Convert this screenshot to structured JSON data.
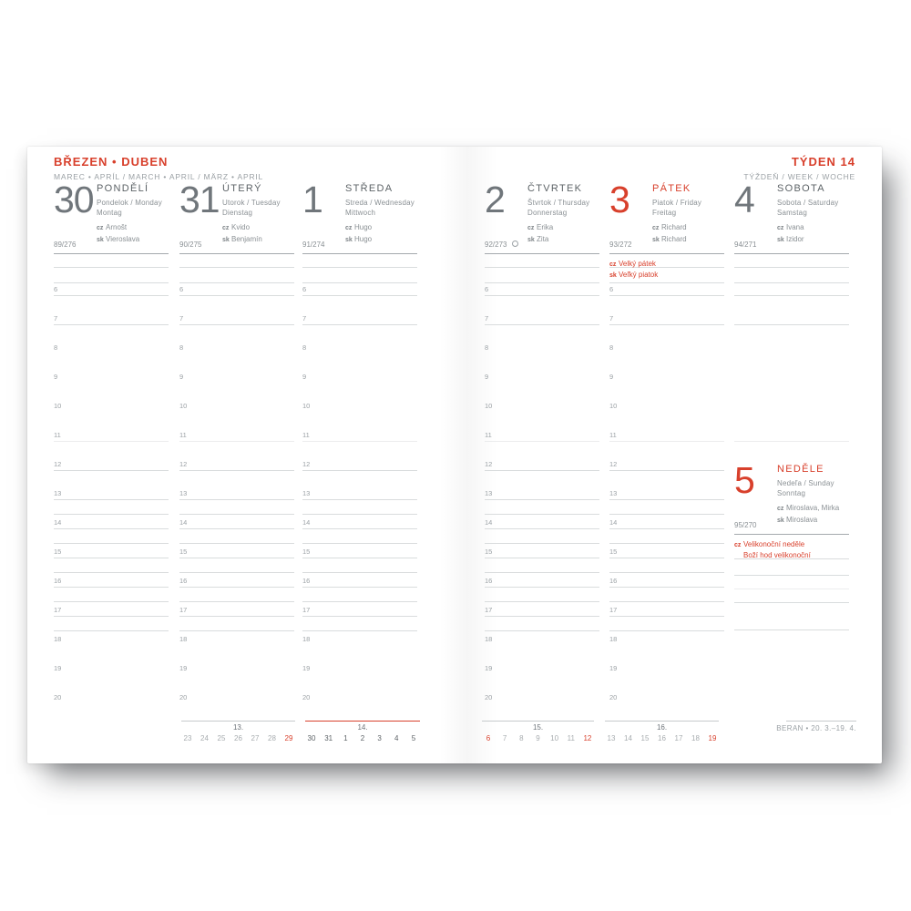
{
  "header": {
    "title_left": "BŘEZEN • DUBEN",
    "subtitle_left": "MAREC • APRÍL / MARCH • APRIL / MÄRZ • APRIL",
    "title_right": "TÝDEN 14",
    "subtitle_right": "TÝŽDEŇ / WEEK / WOCHE"
  },
  "labels": {
    "cz": "cz",
    "sk": "sk"
  },
  "colors": {
    "accent": "#d8402c",
    "text_gray": "#5d6367",
    "rule_gray": "#d9dcdd"
  },
  "hours": [
    "6",
    "7",
    "8",
    "9",
    "10",
    "11",
    "12",
    "13",
    "14",
    "15",
    "16",
    "17",
    "18",
    "19",
    "20"
  ],
  "days": [
    {
      "num": "30",
      "name": "PONDĚLÍ",
      "sub1": "Pondelok / Monday",
      "sub2": "Montag",
      "cz": "Arnošt",
      "sk": "Vieroslava",
      "doy": "89/276",
      "accent": false,
      "moon": false,
      "holiday": null
    },
    {
      "num": "31",
      "name": "ÚTERÝ",
      "sub1": "Utorok / Tuesday",
      "sub2": "Dienstag",
      "cz": "Kvido",
      "sk": "Benjamín",
      "doy": "90/275",
      "accent": false,
      "moon": false,
      "holiday": null
    },
    {
      "num": "1",
      "name": "STŘEDA",
      "sub1": "Streda / Wednesday",
      "sub2": "Mittwoch",
      "cz": "Hugo",
      "sk": "Hugo",
      "doy": "91/274",
      "accent": false,
      "moon": false,
      "holiday": null
    },
    {
      "num": "2",
      "name": "ČTVRTEK",
      "sub1": "Štvrtok / Thursday",
      "sub2": "Donnerstag",
      "cz": "Erika",
      "sk": "Zita",
      "doy": "92/273",
      "accent": false,
      "moon": true,
      "holiday": null
    },
    {
      "num": "3",
      "name": "PÁTEK",
      "sub1": "Piatok / Friday",
      "sub2": "Freitag",
      "cz": "Richard",
      "sk": "Richard",
      "doy": "93/272",
      "accent": true,
      "moon": false,
      "holiday": [
        {
          "prefix": "cz",
          "text": "Velký pátek"
        },
        {
          "prefix": "sk",
          "text": "Veľký piatok"
        }
      ]
    },
    {
      "num": "4",
      "name": "SOBOTA",
      "sub1": "Sobota / Saturday",
      "sub2": "Samstag",
      "cz": "Ivana",
      "sk": "Izidor",
      "doy": "94/271",
      "accent": false,
      "moon": false,
      "holiday": null
    },
    {
      "num": "5",
      "name": "NEDĚLE",
      "sub1": "Nedeľa / Sunday",
      "sub2": "Sonntag",
      "cz": "Miroslava, Mirka",
      "sk": "Miroslava",
      "doy": "95/270",
      "accent": true,
      "moon": false,
      "holiday": [
        {
          "prefix": "cz",
          "text": "Velikonoční neděle"
        },
        {
          "prefix": "",
          "text": "Boží hod velikonoční"
        }
      ]
    }
  ],
  "footer": {
    "weeks": [
      {
        "label": "13.",
        "current": false,
        "days": [
          {
            "n": "23",
            "red": false
          },
          {
            "n": "24",
            "red": false
          },
          {
            "n": "25",
            "red": false
          },
          {
            "n": "26",
            "red": false
          },
          {
            "n": "27",
            "red": false
          },
          {
            "n": "28",
            "red": false
          },
          {
            "n": "29",
            "red": true
          }
        ]
      },
      {
        "label": "14.",
        "current": true,
        "days": [
          {
            "n": "30",
            "red": false
          },
          {
            "n": "31",
            "red": false
          },
          {
            "n": "1",
            "red": false
          },
          {
            "n": "2",
            "red": false
          },
          {
            "n": "3",
            "red": true
          },
          {
            "n": "4",
            "red": false
          },
          {
            "n": "5",
            "red": true
          }
        ]
      },
      {
        "label": "15.",
        "current": false,
        "days": [
          {
            "n": "6",
            "red": true
          },
          {
            "n": "7",
            "red": false
          },
          {
            "n": "8",
            "red": false
          },
          {
            "n": "9",
            "red": false
          },
          {
            "n": "10",
            "red": false
          },
          {
            "n": "11",
            "red": false
          },
          {
            "n": "12",
            "red": true
          }
        ]
      },
      {
        "label": "16.",
        "current": false,
        "days": [
          {
            "n": "13",
            "red": false
          },
          {
            "n": "14",
            "red": false
          },
          {
            "n": "15",
            "red": false
          },
          {
            "n": "16",
            "red": false
          },
          {
            "n": "17",
            "red": false
          },
          {
            "n": "18",
            "red": false
          },
          {
            "n": "19",
            "red": true
          }
        ]
      }
    ],
    "zodiac": "BERAN • 20. 3.–19. 4."
  }
}
